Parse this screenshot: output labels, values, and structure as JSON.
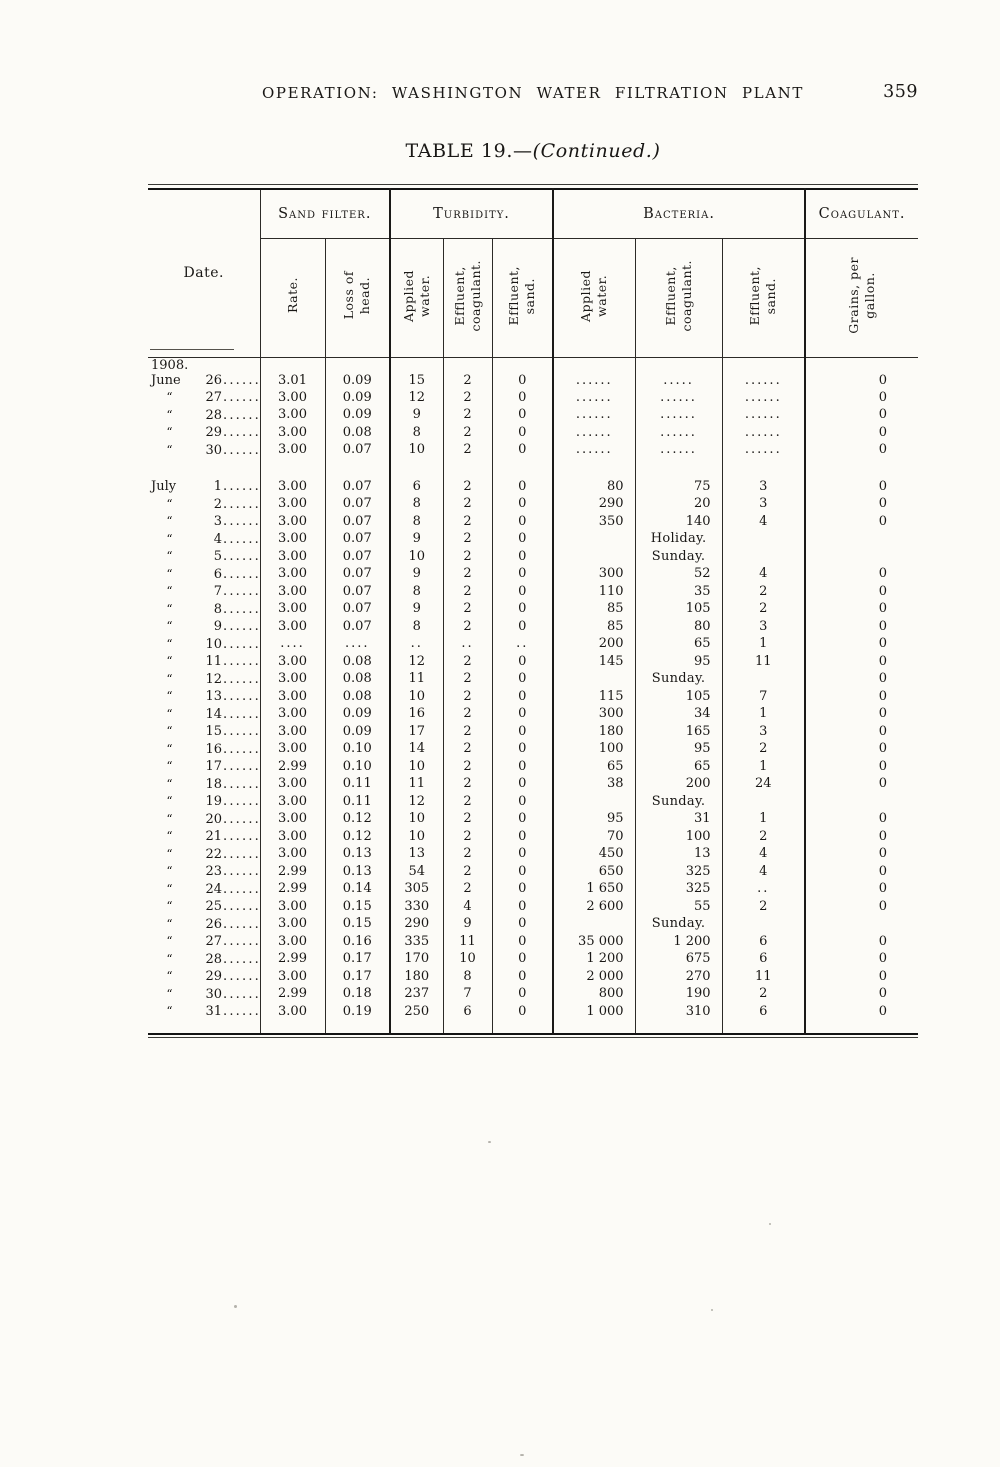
{
  "page": {
    "running_head": "OPERATION: WASHINGTON WATER FILTRATION PLANT",
    "page_number": "359",
    "title": "TABLE 19.—",
    "title_continued": "(Continued.)"
  },
  "table": {
    "date_header": "Date.",
    "groups": [
      {
        "label": "Sand filter."
      },
      {
        "label": "Turbidity."
      },
      {
        "label": "Bacteria."
      },
      {
        "label": "Coagulant."
      }
    ],
    "subheaders": [
      "Rate.",
      "Loss of\nhead.",
      "Applied\nwater.",
      "Effluent,\ncoagulant.",
      "Effluent,\nsand.",
      "Applied\nwater.",
      "Effluent,\ncoagulant.",
      "Effluent,\nsand.",
      "Grains, per\ngallon."
    ],
    "year_label": "1908.",
    "leader_dots": "......",
    "ditto_mark": "“",
    "rows": [
      {
        "month": "June",
        "day": "26",
        "cells": [
          "3.01",
          "0.09",
          "15",
          "2",
          "0",
          "......",
          ".....",
          "......",
          "0"
        ]
      },
      {
        "month": "“",
        "day": "27",
        "cells": [
          "3.00",
          "0.09",
          "12",
          "2",
          "0",
          "......",
          "......",
          "......",
          "0"
        ]
      },
      {
        "month": "“",
        "day": "28",
        "cells": [
          "3.00",
          "0.09",
          "9",
          "2",
          "0",
          "......",
          "......",
          "......",
          "0"
        ]
      },
      {
        "month": "“",
        "day": "29",
        "cells": [
          "3.00",
          "0.08",
          "8",
          "2",
          "0",
          "......",
          "......",
          "......",
          "0"
        ]
      },
      {
        "month": "“",
        "day": "30",
        "cells": [
          "3.00",
          "0.07",
          "10",
          "2",
          "0",
          "......",
          "......",
          "......",
          "0"
        ]
      },
      {
        "month": "July",
        "day": "1",
        "new_block": true,
        "cells": [
          "3.00",
          "0.07",
          "6",
          "2",
          "0",
          "80",
          "75",
          "3",
          "0"
        ]
      },
      {
        "month": "“",
        "day": "2",
        "cells": [
          "3.00",
          "0.07",
          "8",
          "2",
          "0",
          "290",
          "20",
          "3",
          "0"
        ]
      },
      {
        "month": "“",
        "day": "3",
        "cells": [
          "3.00",
          "0.07",
          "8",
          "2",
          "0",
          "350",
          "140",
          "4",
          "0"
        ]
      },
      {
        "month": "“",
        "day": "4",
        "note": true,
        "cells": [
          "3.00",
          "0.07",
          "9",
          "2",
          "0",
          "",
          "Holiday.",
          "",
          ""
        ]
      },
      {
        "month": "“",
        "day": "5",
        "note": true,
        "cells": [
          "3.00",
          "0.07",
          "10",
          "2",
          "0",
          "",
          "Sunday.",
          "",
          ""
        ]
      },
      {
        "month": "“",
        "day": "6",
        "cells": [
          "3.00",
          "0.07",
          "9",
          "2",
          "0",
          "300",
          "52",
          "4",
          "0"
        ]
      },
      {
        "month": "“",
        "day": "7",
        "cells": [
          "3.00",
          "0.07",
          "8",
          "2",
          "0",
          "110",
          "35",
          "2",
          "0"
        ]
      },
      {
        "month": "“",
        "day": "8",
        "cells": [
          "3.00",
          "0.07",
          "9",
          "2",
          "0",
          "85",
          "105",
          "2",
          "0"
        ]
      },
      {
        "month": "“",
        "day": "9",
        "cells": [
          "3.00",
          "0.07",
          "8",
          "2",
          "0",
          "85",
          "80",
          "3",
          "0"
        ]
      },
      {
        "month": "“",
        "day": "10",
        "cells": [
          "....",
          "....",
          "..",
          "..",
          "..",
          "200",
          "65",
          "1",
          "0"
        ]
      },
      {
        "month": "“",
        "day": "11",
        "cells": [
          "3.00",
          "0.08",
          "12",
          "2",
          "0",
          "145",
          "95",
          "11",
          "0"
        ]
      },
      {
        "month": "“",
        "day": "12",
        "note": true,
        "cells": [
          "3.00",
          "0.08",
          "11",
          "2",
          "0",
          "",
          "Sunday.",
          "",
          "0"
        ]
      },
      {
        "month": "“",
        "day": "13",
        "cells": [
          "3.00",
          "0.08",
          "10",
          "2",
          "0",
          "115",
          "105",
          "7",
          "0"
        ]
      },
      {
        "month": "“",
        "day": "14",
        "cells": [
          "3.00",
          "0.09",
          "16",
          "2",
          "0",
          "300",
          "34",
          "1",
          "0"
        ]
      },
      {
        "month": "“",
        "day": "15",
        "cells": [
          "3.00",
          "0.09",
          "17",
          "2",
          "0",
          "180",
          "165",
          "3",
          "0"
        ]
      },
      {
        "month": "“",
        "day": "16",
        "cells": [
          "3.00",
          "0.10",
          "14",
          "2",
          "0",
          "100",
          "95",
          "2",
          "0"
        ]
      },
      {
        "month": "“",
        "day": "17",
        "cells": [
          "2.99",
          "0.10",
          "10",
          "2",
          "0",
          "65",
          "65",
          "1",
          "0"
        ]
      },
      {
        "month": "“",
        "day": "18",
        "cells": [
          "3.00",
          "0.11",
          "11",
          "2",
          "0",
          "38",
          "200",
          "24",
          "0"
        ]
      },
      {
        "month": "“",
        "day": "19",
        "note": true,
        "cells": [
          "3.00",
          "0.11",
          "12",
          "2",
          "0",
          "",
          "Sunday.",
          "",
          ""
        ]
      },
      {
        "month": "“",
        "day": "20",
        "cells": [
          "3.00",
          "0.12",
          "10",
          "2",
          "0",
          "95",
          "31",
          "1",
          "0"
        ]
      },
      {
        "month": "“",
        "day": "21",
        "cells": [
          "3.00",
          "0.12",
          "10",
          "2",
          "0",
          "70",
          "100",
          "2",
          "0"
        ]
      },
      {
        "month": "“",
        "day": "22",
        "cells": [
          "3.00",
          "0.13",
          "13",
          "2",
          "0",
          "450",
          "13",
          "4",
          "0"
        ]
      },
      {
        "month": "“",
        "day": "23",
        "cells": [
          "2.99",
          "0.13",
          "54",
          "2",
          "0",
          "650",
          "325",
          "4",
          "0"
        ]
      },
      {
        "month": "“",
        "day": "24",
        "cells": [
          "2.99",
          "0.14",
          "305",
          "2",
          "0",
          "1 650",
          "325",
          "..",
          "0"
        ]
      },
      {
        "month": "“",
        "day": "25",
        "cells": [
          "3.00",
          "0.15",
          "330",
          "4",
          "0",
          "2 600",
          "55",
          "2",
          "0"
        ]
      },
      {
        "month": "“",
        "day": "26",
        "note": true,
        "cells": [
          "3.00",
          "0.15",
          "290",
          "9",
          "0",
          "",
          "Sunday.",
          "",
          ""
        ]
      },
      {
        "month": "“",
        "day": "27",
        "cells": [
          "3.00",
          "0.16",
          "335",
          "11",
          "0",
          "35 000",
          "1 200",
          "6",
          "0"
        ]
      },
      {
        "month": "“",
        "day": "28",
        "cells": [
          "2.99",
          "0.17",
          "170",
          "10",
          "0",
          "1 200",
          "675",
          "6",
          "0"
        ]
      },
      {
        "month": "“",
        "day": "29",
        "cells": [
          "3.00",
          "0.17",
          "180",
          "8",
          "0",
          "2 000",
          "270",
          "11",
          "0"
        ]
      },
      {
        "month": "“",
        "day": "30",
        "cells": [
          "2.99",
          "0.18",
          "237",
          "7",
          "0",
          "800",
          "190",
          "2",
          "0"
        ]
      },
      {
        "month": "“",
        "day": "31",
        "cells": [
          "3.00",
          "0.19",
          "250",
          "6",
          "0",
          "1 000",
          "310",
          "6",
          "0"
        ]
      }
    ]
  }
}
